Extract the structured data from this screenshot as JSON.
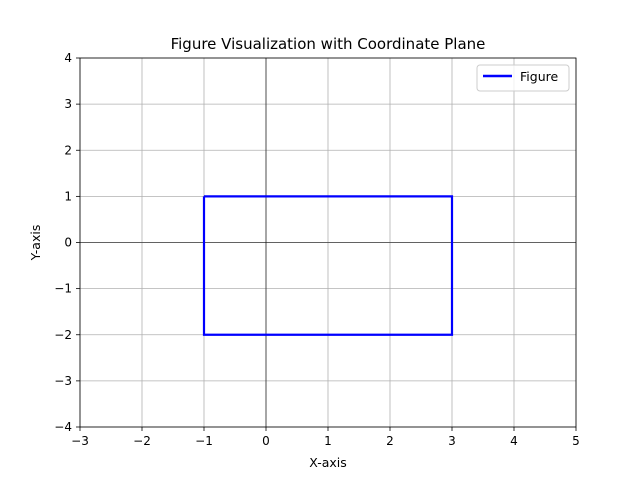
{
  "chart_data": {
    "type": "line",
    "title": "Figure Visualization with Coordinate Plane",
    "xlabel": "X-axis",
    "ylabel": "Y-axis",
    "xlim": [
      -3,
      5
    ],
    "ylim": [
      -4,
      4
    ],
    "xticks": [
      -3,
      -2,
      -1,
      0,
      1,
      2,
      3,
      4,
      5
    ],
    "yticks": [
      -4,
      -3,
      -2,
      -1,
      0,
      1,
      2,
      3,
      4
    ],
    "xtick_labels": [
      "−3",
      "−2",
      "−1",
      "0",
      "1",
      "2",
      "3",
      "4",
      "5"
    ],
    "ytick_labels": [
      "−4",
      "−3",
      "−2",
      "−1",
      "0",
      "1",
      "2",
      "3",
      "4"
    ],
    "grid": true,
    "reference_lines": {
      "x": 0,
      "y": 0,
      "color": "#000000"
    },
    "legend_position": "top-right",
    "series": [
      {
        "name": "Figure",
        "color": "#0000ff",
        "x": [
          -1,
          3,
          3,
          -1,
          -1
        ],
        "y": [
          1,
          1,
          -2,
          -2,
          1
        ]
      }
    ]
  }
}
